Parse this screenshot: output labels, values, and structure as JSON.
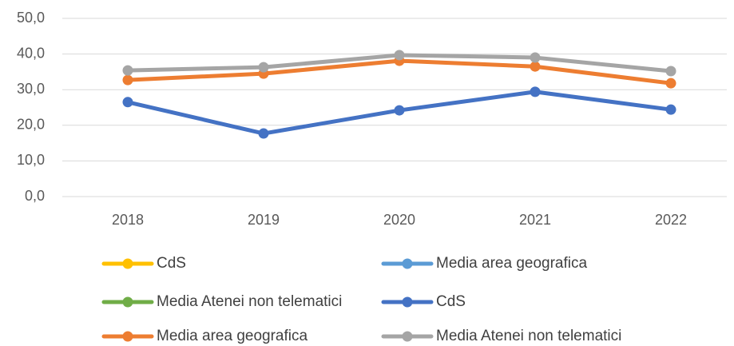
{
  "chart_data": {
    "type": "line",
    "categories": [
      "2018",
      "2019",
      "2020",
      "2021",
      "2022"
    ],
    "series": [
      {
        "name": "CdS",
        "color": "#ffc000",
        "values": [
          null,
          null,
          null,
          null,
          null
        ]
      },
      {
        "name": "Media area geografica",
        "color": "#5b9bd5",
        "values": [
          null,
          null,
          null,
          null,
          null
        ]
      },
      {
        "name": "Media Atenei non telematici",
        "color": "#70ad47",
        "values": [
          null,
          null,
          null,
          null,
          null
        ]
      },
      {
        "name": "CdS",
        "color": "#4472c4",
        "values": [
          26.5,
          17.7,
          24.2,
          29.4,
          24.4
        ]
      },
      {
        "name": "Media area geografica",
        "color": "#ed7d31",
        "values": [
          32.7,
          34.5,
          38.1,
          36.5,
          31.8
        ]
      },
      {
        "name": "Media Atenei non telematici",
        "color": "#a5a5a5",
        "values": [
          35.4,
          36.3,
          39.7,
          39.0,
          35.2
        ]
      }
    ],
    "ylim": [
      0,
      50
    ],
    "yticks": [
      {
        "value": 0,
        "label": "0,0"
      },
      {
        "value": 10,
        "label": "10,0"
      },
      {
        "value": 20,
        "label": "20,0"
      },
      {
        "value": 30,
        "label": "30,0"
      },
      {
        "value": 40,
        "label": "40,0"
      },
      {
        "value": 50,
        "label": "50,0"
      }
    ],
    "grid": true
  }
}
